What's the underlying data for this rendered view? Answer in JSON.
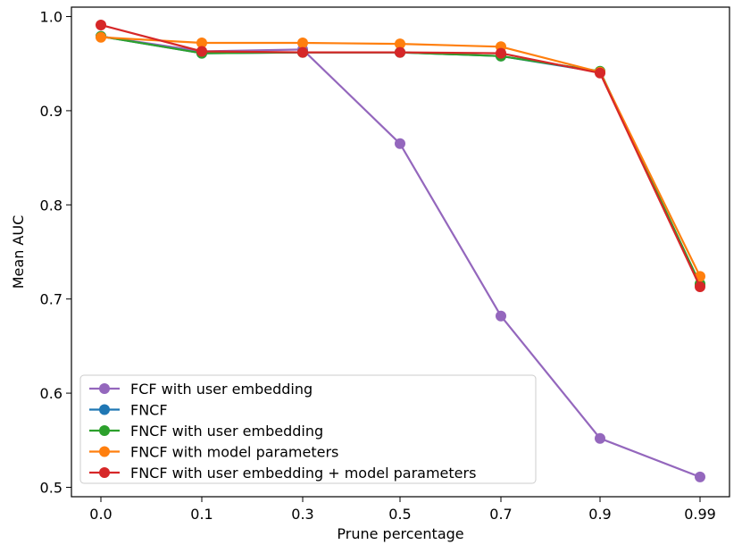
{
  "chart_data": {
    "type": "line",
    "title": "",
    "xlabel": "Prune percentage",
    "ylabel": "Mean AUC",
    "categories": [
      "0.0",
      "0.1",
      "0.3",
      "0.5",
      "0.7",
      "0.9",
      "0.99"
    ],
    "ylim": [
      0.49,
      1.01
    ],
    "yticks": [
      "0.5",
      "0.6",
      "0.7",
      "0.8",
      "0.9",
      "1.0"
    ],
    "grid": false,
    "legend_position": "lower-left",
    "series": [
      {
        "name": "FCF with user embedding",
        "color": "#9467bd",
        "values": [
          0.979,
          0.963,
          0.965,
          0.865,
          0.682,
          0.552,
          0.511
        ]
      },
      {
        "name": "FNCF",
        "color": "#1f77b4",
        "values": [
          0.979,
          0.961,
          0.962,
          0.962,
          0.958,
          0.941,
          0.715
        ]
      },
      {
        "name": "FNCF with user embedding",
        "color": "#2ca02c",
        "values": [
          0.979,
          0.961,
          0.962,
          0.962,
          0.958,
          0.942,
          0.716
        ]
      },
      {
        "name": "FNCF with model parameters",
        "color": "#ff7f0e",
        "values": [
          0.978,
          0.972,
          0.972,
          0.971,
          0.968,
          0.941,
          0.724
        ]
      },
      {
        "name": "FNCF with user embedding + model parameters",
        "color": "#d62728",
        "values": [
          0.991,
          0.963,
          0.962,
          0.962,
          0.961,
          0.94,
          0.713
        ]
      }
    ]
  }
}
